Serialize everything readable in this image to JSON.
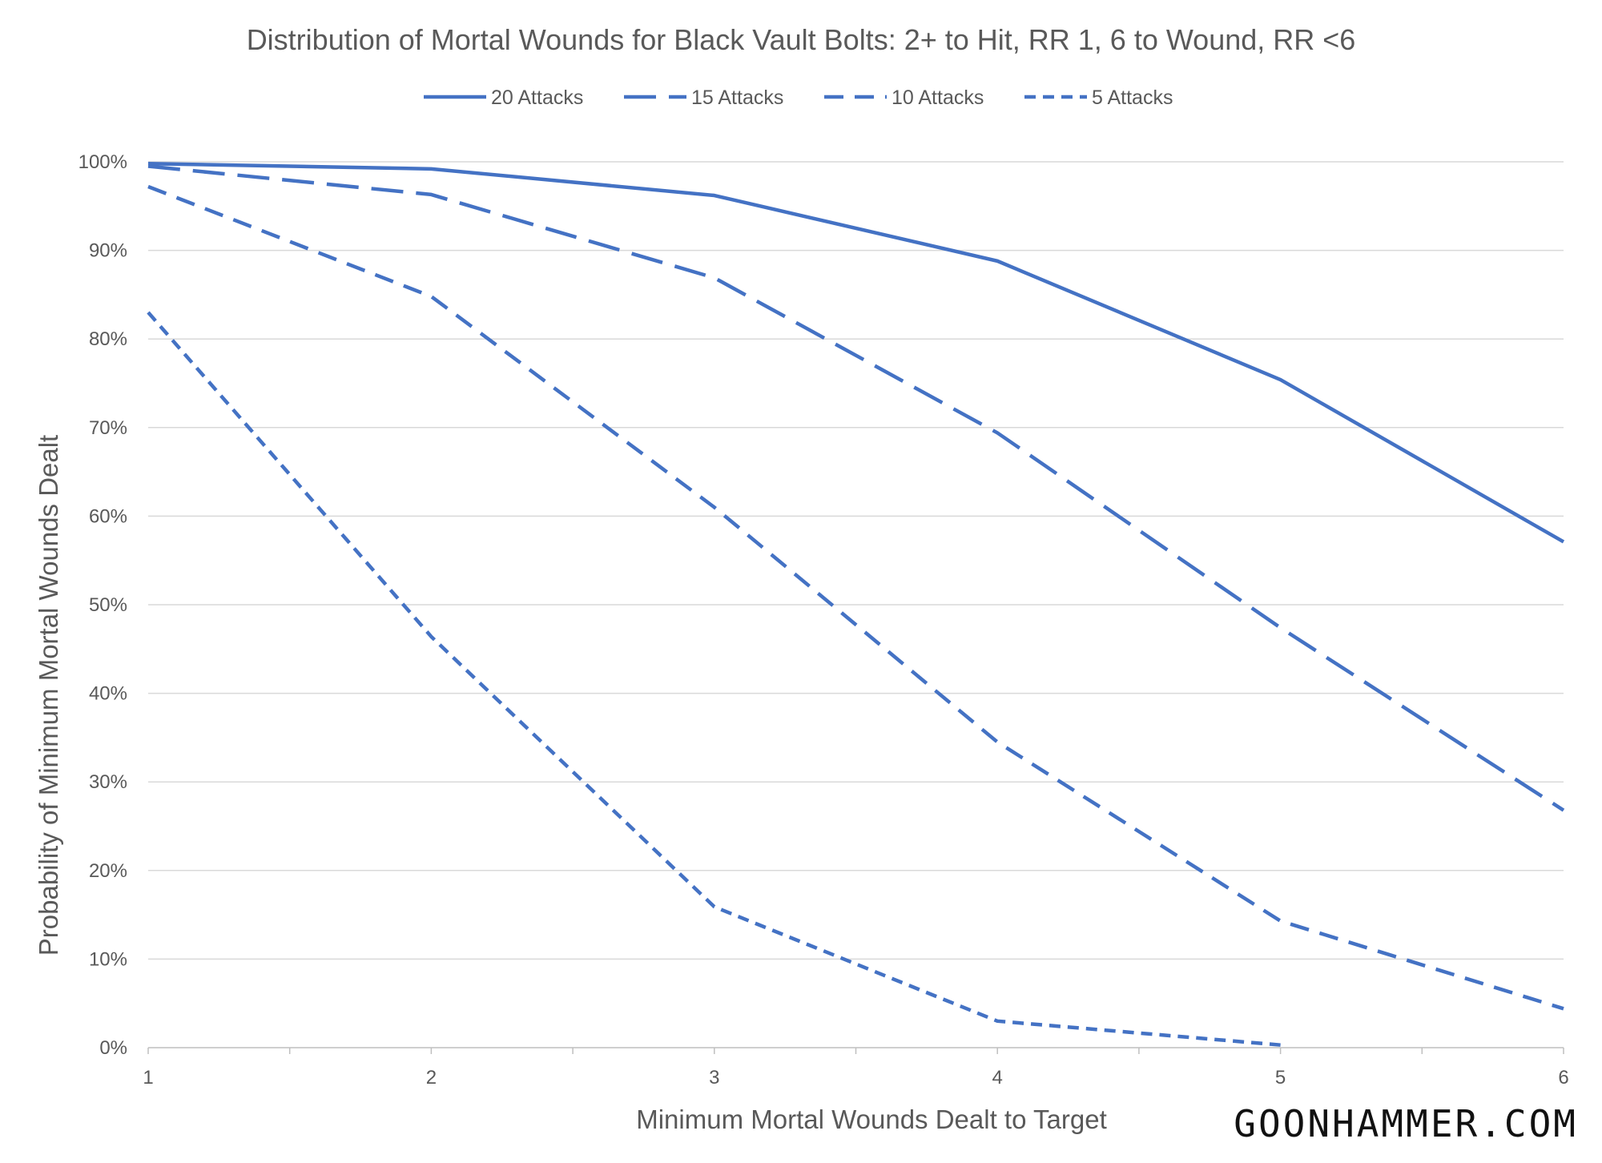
{
  "chart_data": {
    "type": "line",
    "title": "Distribution of Mortal Wounds for Black Vault Bolts: 2+ to Hit, RR 1, 6 to Wound, RR <6",
    "xlabel": "Minimum Mortal Wounds Dealt to Target",
    "ylabel": "Probability of Minimum Mortal Wounds Dealt",
    "x": [
      1,
      2,
      3,
      4,
      5,
      6
    ],
    "x_tick_labels": [
      "1",
      "2",
      "3",
      "4",
      "5",
      "6"
    ],
    "xlim": [
      1,
      6
    ],
    "ylim": [
      0,
      1
    ],
    "y_ticks": [
      0,
      0.1,
      0.2,
      0.3,
      0.4,
      0.5,
      0.6,
      0.7,
      0.8,
      0.9,
      1.0
    ],
    "y_tick_labels": [
      "0%",
      "10%",
      "20%",
      "30%",
      "40%",
      "50%",
      "60%",
      "70%",
      "80%",
      "90%",
      "100%"
    ],
    "grid": true,
    "legend_position": "top",
    "series": [
      {
        "name": "20 Attacks",
        "dash": "solid",
        "values": [
          0.998,
          0.992,
          0.962,
          0.888,
          0.754,
          0.571
        ]
      },
      {
        "name": "15 Attacks",
        "dash": "longdash",
        "values": [
          0.995,
          0.963,
          0.869,
          0.694,
          0.474,
          0.268
        ]
      },
      {
        "name": "10 Attacks",
        "dash": "dash",
        "values": [
          0.972,
          0.848,
          0.61,
          0.345,
          0.143,
          0.044
        ]
      },
      {
        "name": "5 Attacks",
        "dash": "shortdash",
        "values": [
          0.83,
          0.464,
          0.159,
          0.03,
          0.003,
          null
        ]
      }
    ]
  },
  "colors": {
    "line": "#4472C4",
    "grid": "#D9D9D9",
    "axis": "#BFBFBF",
    "text": "#595959"
  },
  "watermark": "GOONHAMMER.COM"
}
